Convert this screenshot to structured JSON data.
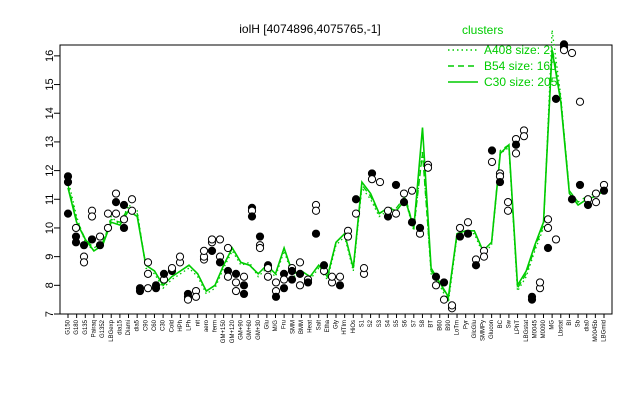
{
  "chart_data": {
    "type": "line",
    "title": "iolH [4074896,4075765,-1]",
    "xlabel": "",
    "ylabel": "",
    "ylim": [
      7,
      16.3
    ],
    "y_ticks": [
      "7",
      "8",
      "9",
      "10",
      "11",
      "12",
      "13",
      "14",
      "15",
      "16"
    ],
    "x_tick_labels": [
      "G150",
      "G180",
      "G135",
      "Pairaq",
      "G1352",
      "LBGexp",
      "dia15",
      "Diami",
      "dia5",
      "C90",
      "C60",
      "C30",
      "Cold",
      "HPh",
      "LPh",
      "nit",
      "aero",
      "ferm",
      "GM+150",
      "GM+120",
      "GM+90",
      "GM+60",
      "GM+30",
      "Glu",
      "M/G",
      "Fru",
      "SMM",
      "BMM",
      "Heat",
      "Salt",
      "Etha",
      "Gly",
      "HTIm",
      "HiOs",
      "S1",
      "S2",
      "S3",
      "S4",
      "S5",
      "S6",
      "S7",
      "S8",
      "BT",
      "B60",
      "B90",
      "LoTm",
      "Pyr",
      "GlcGlu",
      "SMMPy",
      "Glucon",
      "BC",
      "Sw",
      "LPhT",
      "LBGstat",
      "M0045",
      "M0090",
      "MG",
      "Lbstat",
      "BI",
      "Sb",
      "dia0",
      "M0045b",
      "LBGmid"
    ],
    "legend": {
      "title": "clusters",
      "position": "top-right",
      "color": "#00cc00",
      "entries": [
        {
          "label": "A408 size: 2",
          "style": "dotted"
        },
        {
          "label": "B54 size: 160",
          "style": "dashed"
        },
        {
          "label": "C30 size: 205",
          "style": "solid"
        }
      ]
    },
    "series": [
      {
        "name": "A408 size: 2",
        "style": "dotted",
        "values": [
          11.7,
          10.4,
          9.5,
          9.2,
          9.4,
          10.4,
          10.1,
          10.8,
          10.6,
          8.6,
          8.4,
          7.9,
          8.2,
          8.4,
          8.6,
          8.3,
          7.7,
          7.9,
          8.6,
          9.2,
          8.7,
          8.8,
          8.3,
          8.6,
          8.3,
          9.2,
          8.3,
          8.4,
          8.2,
          8.6,
          8.2,
          9.4,
          9.7,
          8.5,
          11.4,
          11.0,
          10.4,
          10.6,
          10.6,
          11.0,
          9.9,
          12.7,
          8.4,
          8.0,
          7.4,
          9.7,
          9.8,
          9.8,
          9.1,
          9.4,
          12.6,
          12.8,
          7.8,
          8.3,
          9.2,
          10.0,
          16.9,
          14.6,
          11.2,
          10.8,
          11.0,
          11.1,
          11.3
        ]
      },
      {
        "name": "B54 size: 160",
        "style": "dashed",
        "values": [
          11.5,
          10.3,
          9.6,
          9.3,
          9.5,
          10.3,
          10.2,
          10.7,
          10.5,
          8.7,
          8.5,
          8.0,
          8.3,
          8.5,
          8.7,
          8.4,
          7.8,
          8.0,
          8.7,
          9.3,
          8.8,
          8.7,
          8.4,
          8.7,
          8.4,
          9.3,
          8.4,
          8.5,
          8.3,
          8.7,
          8.3,
          9.5,
          9.8,
          8.6,
          11.5,
          11.1,
          10.5,
          10.7,
          10.7,
          11.1,
          10.0,
          12.6,
          8.5,
          8.1,
          7.5,
          9.8,
          9.9,
          9.9,
          9.2,
          9.5,
          12.7,
          12.9,
          7.9,
          8.4,
          9.3,
          10.1,
          16.3,
          14.5,
          11.3,
          10.9,
          11.1,
          11.2,
          11.4
        ]
      },
      {
        "name": "C30 size: 205",
        "style": "solid",
        "values": [
          11.4,
          10.2,
          9.6,
          9.2,
          9.4,
          10.2,
          10.1,
          10.6,
          10.4,
          8.7,
          8.5,
          8.0,
          8.3,
          8.5,
          8.7,
          8.4,
          7.8,
          8.0,
          8.7,
          9.3,
          8.8,
          8.7,
          8.4,
          8.7,
          8.4,
          9.3,
          8.4,
          8.5,
          8.3,
          8.7,
          8.3,
          9.5,
          9.8,
          8.6,
          11.6,
          11.2,
          10.5,
          10.7,
          10.6,
          11.0,
          10.0,
          13.5,
          8.6,
          8.1,
          7.6,
          9.8,
          9.9,
          9.9,
          9.2,
          9.5,
          12.6,
          12.9,
          8.0,
          8.5,
          9.4,
          10.2,
          16.2,
          14.4,
          11.2,
          10.8,
          11.0,
          11.1,
          11.3
        ]
      }
    ],
    "points": [
      {
        "i": 0,
        "y": 11.8,
        "f": 1
      },
      {
        "i": 0,
        "y": 11.6,
        "f": 1
      },
      {
        "i": 0,
        "y": 10.5,
        "f": 1
      },
      {
        "i": 1,
        "y": 9.7,
        "f": 1
      },
      {
        "i": 1,
        "y": 10.0,
        "f": 0
      },
      {
        "i": 1,
        "y": 9.5,
        "f": 1
      },
      {
        "i": 2,
        "y": 9.4,
        "f": 1
      },
      {
        "i": 2,
        "y": 9.0,
        "f": 0
      },
      {
        "i": 2,
        "y": 8.8,
        "f": 0
      },
      {
        "i": 3,
        "y": 10.6,
        "f": 0
      },
      {
        "i": 3,
        "y": 9.6,
        "f": 1
      },
      {
        "i": 3,
        "y": 10.4,
        "f": 0
      },
      {
        "i": 4,
        "y": 9.7,
        "f": 0
      },
      {
        "i": 4,
        "y": 9.4,
        "f": 1
      },
      {
        "i": 5,
        "y": 10.5,
        "f": 0
      },
      {
        "i": 5,
        "y": 10.0,
        "f": 0
      },
      {
        "i": 6,
        "y": 11.2,
        "f": 0
      },
      {
        "i": 6,
        "y": 10.9,
        "f": 1
      },
      {
        "i": 6,
        "y": 10.5,
        "f": 0
      },
      {
        "i": 7,
        "y": 10.8,
        "f": 1
      },
      {
        "i": 7,
        "y": 10.3,
        "f": 0
      },
      {
        "i": 7,
        "y": 10.0,
        "f": 1
      },
      {
        "i": 8,
        "y": 11.0,
        "f": 0
      },
      {
        "i": 8,
        "y": 10.6,
        "f": 0
      },
      {
        "i": 9,
        "y": 7.9,
        "f": 1
      },
      {
        "i": 9,
        "y": 7.8,
        "f": 1
      },
      {
        "i": 10,
        "y": 8.8,
        "f": 0
      },
      {
        "i": 10,
        "y": 8.4,
        "f": 0
      },
      {
        "i": 10,
        "y": 7.9,
        "f": 0
      },
      {
        "i": 11,
        "y": 7.9,
        "f": 1
      },
      {
        "i": 11,
        "y": 8.0,
        "f": 1
      },
      {
        "i": 12,
        "y": 8.2,
        "f": 0
      },
      {
        "i": 12,
        "y": 8.4,
        "f": 1
      },
      {
        "i": 13,
        "y": 8.5,
        "f": 1
      },
      {
        "i": 13,
        "y": 8.6,
        "f": 0
      },
      {
        "i": 14,
        "y": 8.8,
        "f": 0
      },
      {
        "i": 14,
        "y": 9.0,
        "f": 0
      },
      {
        "i": 15,
        "y": 7.6,
        "f": 1
      },
      {
        "i": 15,
        "y": 7.7,
        "f": 1
      },
      {
        "i": 15,
        "y": 7.5,
        "f": 0
      },
      {
        "i": 16,
        "y": 7.8,
        "f": 0
      },
      {
        "i": 16,
        "y": 7.6,
        "f": 0
      },
      {
        "i": 17,
        "y": 8.9,
        "f": 0
      },
      {
        "i": 17,
        "y": 9.0,
        "f": 0
      },
      {
        "i": 17,
        "y": 9.2,
        "f": 0
      },
      {
        "i": 18,
        "y": 9.5,
        "f": 0
      },
      {
        "i": 18,
        "y": 9.2,
        "f": 1
      },
      {
        "i": 18,
        "y": 9.6,
        "f": 0
      },
      {
        "i": 19,
        "y": 9.6,
        "f": 0
      },
      {
        "i": 19,
        "y": 9.0,
        "f": 0
      },
      {
        "i": 19,
        "y": 8.8,
        "f": 1
      },
      {
        "i": 20,
        "y": 9.3,
        "f": 0
      },
      {
        "i": 20,
        "y": 8.5,
        "f": 1
      },
      {
        "i": 20,
        "y": 8.3,
        "f": 0
      },
      {
        "i": 21,
        "y": 8.4,
        "f": 1
      },
      {
        "i": 21,
        "y": 8.1,
        "f": 0
      },
      {
        "i": 21,
        "y": 7.8,
        "f": 0
      },
      {
        "i": 22,
        "y": 8.0,
        "f": 1
      },
      {
        "i": 22,
        "y": 7.7,
        "f": 1
      },
      {
        "i": 22,
        "y": 8.3,
        "f": 0
      },
      {
        "i": 23,
        "y": 10.7,
        "f": 1
      },
      {
        "i": 23,
        "y": 10.6,
        "f": 0
      },
      {
        "i": 23,
        "y": 10.4,
        "f": 1
      },
      {
        "i": 24,
        "y": 9.7,
        "f": 1
      },
      {
        "i": 24,
        "y": 9.4,
        "f": 0
      },
      {
        "i": 24,
        "y": 9.3,
        "f": 0
      },
      {
        "i": 25,
        "y": 8.7,
        "f": 1
      },
      {
        "i": 25,
        "y": 8.6,
        "f": 0
      },
      {
        "i": 25,
        "y": 8.3,
        "f": 0
      },
      {
        "i": 26,
        "y": 8.1,
        "f": 0
      },
      {
        "i": 26,
        "y": 7.8,
        "f": 0
      },
      {
        "i": 26,
        "y": 7.6,
        "f": 1
      },
      {
        "i": 27,
        "y": 8.4,
        "f": 1
      },
      {
        "i": 27,
        "y": 8.2,
        "f": 0
      },
      {
        "i": 27,
        "y": 7.9,
        "f": 1
      },
      {
        "i": 28,
        "y": 8.6,
        "f": 0
      },
      {
        "i": 28,
        "y": 8.5,
        "f": 1
      },
      {
        "i": 28,
        "y": 8.2,
        "f": 1
      },
      {
        "i": 29,
        "y": 8.8,
        "f": 0
      },
      {
        "i": 29,
        "y": 8.4,
        "f": 1
      },
      {
        "i": 29,
        "y": 8.0,
        "f": 0
      },
      {
        "i": 30,
        "y": 8.2,
        "f": 0
      },
      {
        "i": 30,
        "y": 8.1,
        "f": 1
      },
      {
        "i": 31,
        "y": 10.8,
        "f": 0
      },
      {
        "i": 31,
        "y": 10.6,
        "f": 0
      },
      {
        "i": 31,
        "y": 9.8,
        "f": 1
      },
      {
        "i": 32,
        "y": 8.5,
        "f": 0
      },
      {
        "i": 32,
        "y": 8.7,
        "f": 1
      },
      {
        "i": 33,
        "y": 8.1,
        "f": 0
      },
      {
        "i": 33,
        "y": 8.3,
        "f": 0
      },
      {
        "i": 34,
        "y": 8.3,
        "f": 0
      },
      {
        "i": 34,
        "y": 8.0,
        "f": 1
      },
      {
        "i": 35,
        "y": 9.9,
        "f": 0
      },
      {
        "i": 35,
        "y": 9.7,
        "f": 0
      },
      {
        "i": 36,
        "y": 11.0,
        "f": 1
      },
      {
        "i": 36,
        "y": 10.5,
        "f": 0
      },
      {
        "i": 37,
        "y": 8.4,
        "f": 0
      },
      {
        "i": 37,
        "y": 8.6,
        "f": 0
      },
      {
        "i": 38,
        "y": 11.9,
        "f": 1
      },
      {
        "i": 38,
        "y": 11.7,
        "f": 0
      },
      {
        "i": 39,
        "y": 11.6,
        "f": 0
      },
      {
        "i": 40,
        "y": 10.4,
        "f": 1
      },
      {
        "i": 40,
        "y": 10.6,
        "f": 0
      },
      {
        "i": 41,
        "y": 11.5,
        "f": 1
      },
      {
        "i": 41,
        "y": 10.5,
        "f": 0
      },
      {
        "i": 42,
        "y": 11.2,
        "f": 0
      },
      {
        "i": 42,
        "y": 10.9,
        "f": 1
      },
      {
        "i": 43,
        "y": 11.3,
        "f": 0
      },
      {
        "i": 43,
        "y": 10.2,
        "f": 1
      },
      {
        "i": 44,
        "y": 9.8,
        "f": 0
      },
      {
        "i": 44,
        "y": 10.0,
        "f": 1
      },
      {
        "i": 45,
        "y": 12.2,
        "f": 0
      },
      {
        "i": 45,
        "y": 12.1,
        "f": 0
      },
      {
        "i": 46,
        "y": 8.3,
        "f": 1
      },
      {
        "i": 46,
        "y": 8.0,
        "f": 0
      },
      {
        "i": 47,
        "y": 7.5,
        "f": 0
      },
      {
        "i": 47,
        "y": 8.1,
        "f": 1
      },
      {
        "i": 48,
        "y": 7.2,
        "f": 0
      },
      {
        "i": 48,
        "y": 7.3,
        "f": 0
      },
      {
        "i": 49,
        "y": 9.7,
        "f": 1
      },
      {
        "i": 49,
        "y": 10.0,
        "f": 0
      },
      {
        "i": 50,
        "y": 9.8,
        "f": 1
      },
      {
        "i": 50,
        "y": 10.2,
        "f": 0
      },
      {
        "i": 51,
        "y": 8.9,
        "f": 0
      },
      {
        "i": 51,
        "y": 8.7,
        "f": 1
      },
      {
        "i": 52,
        "y": 9.2,
        "f": 0
      },
      {
        "i": 52,
        "y": 9.0,
        "f": 0
      },
      {
        "i": 53,
        "y": 12.3,
        "f": 0
      },
      {
        "i": 53,
        "y": 12.7,
        "f": 1
      },
      {
        "i": 54,
        "y": 11.9,
        "f": 0
      },
      {
        "i": 54,
        "y": 11.8,
        "f": 0
      },
      {
        "i": 54,
        "y": 11.6,
        "f": 1
      },
      {
        "i": 55,
        "y": 10.9,
        "f": 0
      },
      {
        "i": 55,
        "y": 10.6,
        "f": 0
      },
      {
        "i": 56,
        "y": 13.1,
        "f": 0
      },
      {
        "i": 56,
        "y": 12.9,
        "f": 1
      },
      {
        "i": 56,
        "y": 12.6,
        "f": 0
      },
      {
        "i": 57,
        "y": 13.4,
        "f": 0
      },
      {
        "i": 57,
        "y": 13.2,
        "f": 0
      },
      {
        "i": 58,
        "y": 7.6,
        "f": 1
      },
      {
        "i": 58,
        "y": 7.5,
        "f": 1
      },
      {
        "i": 59,
        "y": 7.9,
        "f": 0
      },
      {
        "i": 59,
        "y": 8.1,
        "f": 0
      },
      {
        "i": 60,
        "y": 10.3,
        "f": 0
      },
      {
        "i": 60,
        "y": 10.0,
        "f": 0
      },
      {
        "i": 60,
        "y": 9.3,
        "f": 1
      },
      {
        "i": 61,
        "y": 14.5,
        "f": 1
      },
      {
        "i": 61,
        "y": 9.6,
        "f": 0
      },
      {
        "i": 62,
        "y": 16.4,
        "f": 1
      },
      {
        "i": 62,
        "y": 16.3,
        "f": 1
      },
      {
        "i": 62,
        "y": 16.2,
        "f": 0
      },
      {
        "i": 63,
        "y": 16.1,
        "f": 0
      },
      {
        "i": 63,
        "y": 11.0,
        "f": 1
      },
      {
        "i": 64,
        "y": 14.4,
        "f": 0
      },
      {
        "i": 64,
        "y": 11.5,
        "f": 1
      },
      {
        "i": 65,
        "y": 11.0,
        "f": 0
      },
      {
        "i": 65,
        "y": 10.8,
        "f": 1
      },
      {
        "i": 66,
        "y": 11.2,
        "f": 0
      },
      {
        "i": 66,
        "y": 10.9,
        "f": 0
      },
      {
        "i": 67,
        "y": 11.5,
        "f": 0
      },
      {
        "i": 67,
        "y": 11.3,
        "f": 1
      }
    ]
  }
}
